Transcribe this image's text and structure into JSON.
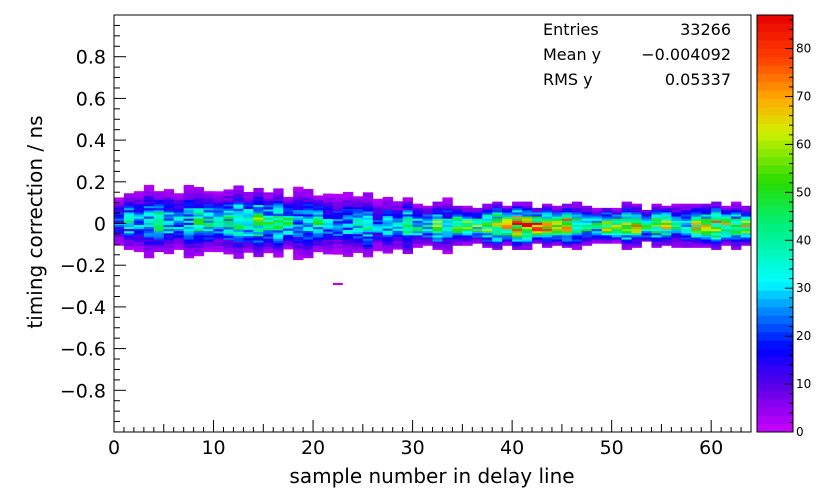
{
  "chart_data": {
    "type": "heatmap",
    "title": "",
    "xlabel": "sample number in delay line",
    "ylabel": "timing correction / ns",
    "xlim": [
      0,
      64
    ],
    "ylim": [
      -1,
      1
    ],
    "x_ticks": [
      0,
      10,
      20,
      30,
      40,
      50,
      60
    ],
    "y_ticks": [
      0.8,
      0.6,
      0.4,
      0.2,
      0,
      -0.2,
      -0.4,
      -0.6,
      -0.8
    ],
    "y_tick_labels": [
      "0.8",
      "0.6",
      "0.4",
      "0.2",
      "0",
      "−0.2",
      "−0.4",
      "−0.6",
      "−0.8"
    ],
    "x_bins": 64,
    "y_bin_width": 0.01,
    "color_scale": {
      "min": 0,
      "max": 87,
      "ticks": [
        0,
        10,
        20,
        30,
        40,
        50,
        60,
        70,
        80
      ]
    },
    "band_center_by_x": [
      [
        0,
        0.01
      ],
      [
        10,
        0.01
      ],
      [
        20,
        0.0
      ],
      [
        30,
        -0.01
      ],
      [
        40,
        -0.01
      ],
      [
        50,
        -0.01
      ],
      [
        60,
        -0.01
      ],
      [
        64,
        -0.01
      ]
    ],
    "band_half_width_by_x": [
      [
        0,
        0.14
      ],
      [
        20,
        0.15
      ],
      [
        30,
        0.12
      ],
      [
        45,
        0.09
      ],
      [
        64,
        0.1
      ]
    ],
    "peak_counts_by_x": [
      [
        0,
        32
      ],
      [
        10,
        45
      ],
      [
        20,
        33
      ],
      [
        30,
        40
      ],
      [
        40,
        68
      ],
      [
        50,
        57
      ],
      [
        64,
        52
      ]
    ],
    "outliers": [
      {
        "x": 22,
        "y": -0.29,
        "count": 1
      }
    ],
    "stats": {
      "entries_label": "Entries",
      "entries_value": "33266",
      "mean_label": "Mean y",
      "mean_value": "−0.004092",
      "rms_label": "RMS y",
      "rms_value": "0.05337"
    }
  }
}
